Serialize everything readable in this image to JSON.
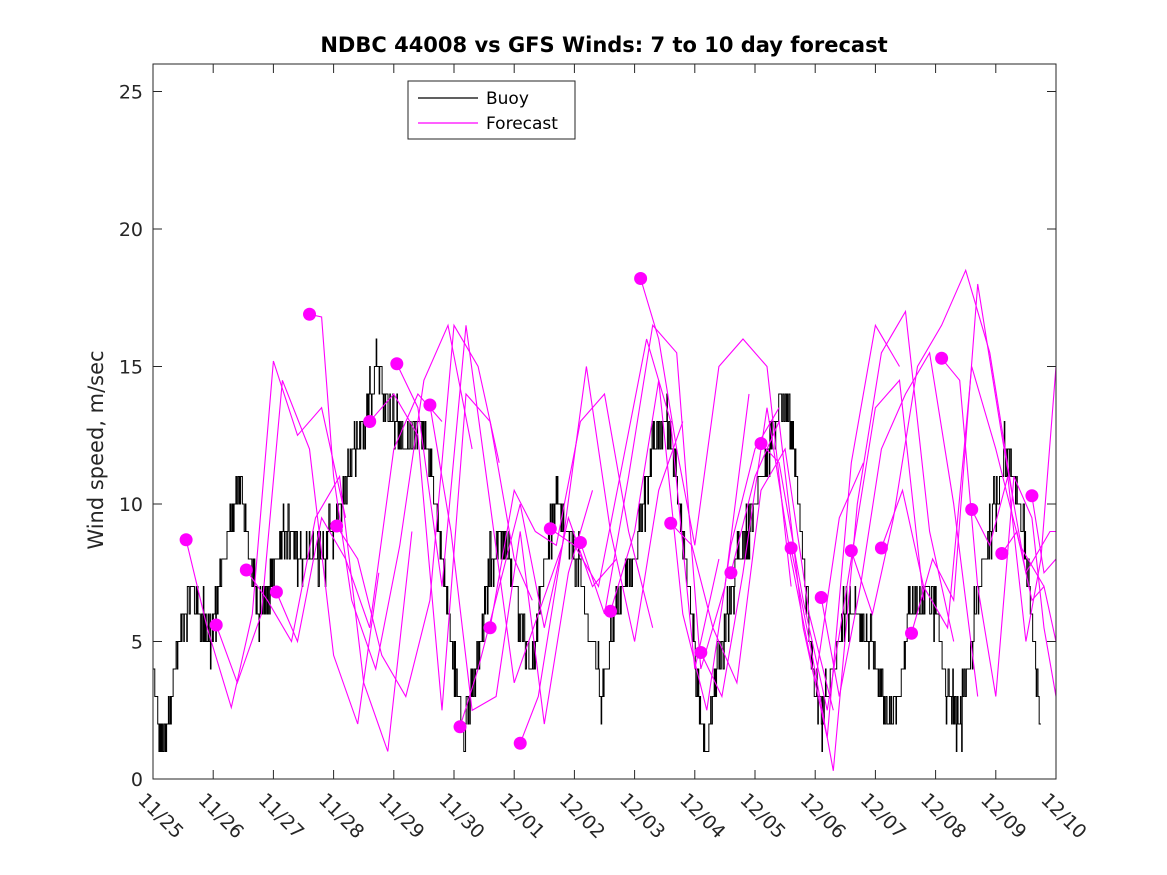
{
  "chart_data": {
    "type": "line",
    "title": "NDBC 44008 vs GFS Winds: 7 to 10 day forecast",
    "xlabel": "",
    "ylabel": "Wind speed, m/sec",
    "xlim": [
      0,
      15
    ],
    "ylim": [
      0,
      26
    ],
    "x_tick_labels": [
      "11/25",
      "11/26",
      "11/27",
      "11/28",
      "11/29",
      "11/30",
      "12/01",
      "12/02",
      "12/03",
      "12/04",
      "12/05",
      "12/06",
      "12/07",
      "12/08",
      "12/09",
      "12/10"
    ],
    "y_ticks": [
      0,
      5,
      10,
      15,
      20,
      25
    ],
    "legend": {
      "placement": "top-left",
      "entries": [
        "Buoy",
        "Forecast"
      ]
    },
    "colors": {
      "buoy": "#000000",
      "forecast": "#ff00ff"
    },
    "buoy_anchors": {
      "x": [
        0,
        0.1,
        0.2,
        0.35,
        0.5,
        0.65,
        0.8,
        0.95,
        1.1,
        1.25,
        1.45,
        1.6,
        1.75,
        1.9,
        2.05,
        2.2,
        2.5,
        2.75,
        3.0,
        3.25,
        3.5,
        3.7,
        3.85,
        4.0,
        4.2,
        4.35,
        4.55,
        4.7,
        4.85,
        5.0,
        5.15,
        5.3,
        5.45,
        5.6,
        5.75,
        5.9,
        6.1,
        6.3,
        6.5,
        6.7,
        6.85,
        7.05,
        7.2,
        7.45,
        7.6,
        7.8,
        8.0,
        8.15,
        8.3,
        8.5,
        8.65,
        8.8,
        8.95,
        9.05,
        9.2,
        9.35,
        9.55,
        9.7,
        9.9,
        10.1,
        10.3,
        10.5,
        10.65,
        10.8,
        10.95,
        11.1,
        11.3,
        11.5,
        11.7,
        11.9,
        12.05,
        12.2,
        12.4,
        12.55,
        12.7,
        12.85,
        13.0,
        13.2,
        13.4,
        13.6,
        13.8,
        14.0,
        14.15,
        14.3,
        14.45,
        14.55,
        14.65,
        14.75
      ],
      "y": [
        4,
        2,
        1,
        4,
        6,
        7,
        6,
        5,
        7,
        9,
        11,
        8,
        6,
        7,
        8,
        9,
        8,
        8,
        9,
        11,
        13,
        15,
        14,
        13,
        12,
        13,
        12,
        10,
        7,
        4,
        2,
        3,
        5,
        8,
        9,
        8,
        6,
        4,
        8,
        10,
        9,
        8,
        6,
        3,
        5,
        7,
        8,
        10,
        12,
        13,
        12,
        9,
        6,
        3,
        1,
        4,
        6,
        8,
        9,
        11,
        13,
        14,
        12,
        8,
        4,
        2,
        4,
        6,
        6,
        5,
        3,
        2,
        3,
        6,
        6,
        7,
        6,
        3,
        2,
        5,
        8,
        10,
        12,
        11,
        9,
        7,
        4,
        2
      ],
      "noise_amplitude": 1,
      "points": 1500
    },
    "forecast_series": [
      {
        "name": "Forecast 1",
        "x": [
          0.55,
          0.9,
          1.3,
          1.65,
          2.0,
          2.4,
          2.8,
          3.2
        ],
        "y": [
          8.7,
          5.5,
          2.6,
          6.0,
          15.2,
          12.5,
          13.5,
          9.5
        ]
      },
      {
        "name": "Forecast 2",
        "x": [
          1.05,
          1.4,
          1.8,
          2.15,
          2.6,
          3.0,
          3.4,
          3.75
        ],
        "y": [
          5.6,
          3.5,
          6.0,
          14.5,
          12.0,
          4.5,
          2.0,
          7.5
        ]
      },
      {
        "name": "Forecast 3",
        "x": [
          1.55,
          1.9,
          2.3,
          2.7,
          3.1,
          3.5,
          3.9,
          4.3
        ],
        "y": [
          7.6,
          6.5,
          5.0,
          9.5,
          11.0,
          3.5,
          1.0,
          9.0
        ]
      },
      {
        "name": "Forecast 4",
        "x": [
          2.05,
          2.4,
          2.8,
          3.2,
          3.6,
          4.0,
          4.4,
          4.8
        ],
        "y": [
          6.8,
          5.0,
          9.5,
          8.0,
          5.5,
          12.0,
          14.0,
          13.0
        ]
      },
      {
        "name": "Forecast 5",
        "x": [
          2.6,
          2.8,
          3.0,
          3.3,
          3.7,
          4.1,
          4.5,
          4.9,
          5.3
        ],
        "y": [
          16.9,
          16.8,
          11.0,
          6.5,
          4.0,
          8.5,
          14.5,
          16.5,
          12.0
        ]
      },
      {
        "name": "Forecast 6",
        "x": [
          3.05,
          3.4,
          3.8,
          4.2,
          4.6,
          5.0,
          5.4,
          5.75
        ],
        "y": [
          9.2,
          8.0,
          4.5,
          3.0,
          6.5,
          16.5,
          15.0,
          11.5
        ]
      },
      {
        "name": "Forecast 7",
        "x": [
          3.6,
          4.0,
          4.4,
          4.8,
          5.2,
          5.6,
          6.0,
          6.3
        ],
        "y": [
          13.0,
          14.0,
          12.5,
          2.5,
          14.0,
          13.0,
          8.0,
          6.5
        ]
      },
      {
        "name": "Forecast 8",
        "x": [
          4.05,
          4.4,
          4.8,
          5.2,
          5.6,
          6.0,
          6.4,
          6.8
        ],
        "y": [
          15.1,
          13.5,
          7.0,
          16.5,
          10.0,
          3.5,
          6.0,
          8.5
        ]
      },
      {
        "name": "Forecast 9",
        "x": [
          4.6,
          4.95,
          5.3,
          5.7,
          6.1,
          6.5,
          6.9,
          7.3
        ],
        "y": [
          13.6,
          9.0,
          2.5,
          3.0,
          9.0,
          2.0,
          7.5,
          10.5
        ]
      },
      {
        "name": "Forecast 10",
        "x": [
          5.1,
          5.4,
          5.75,
          6.1,
          6.5,
          6.9,
          7.3,
          7.7
        ],
        "y": [
          1.9,
          4.0,
          7.0,
          10.0,
          5.5,
          9.5,
          7.0,
          8.0
        ]
      },
      {
        "name": "Forecast 11",
        "x": [
          5.6,
          6.0,
          6.35,
          6.7,
          7.1,
          7.5,
          7.9,
          8.3
        ],
        "y": [
          5.5,
          10.5,
          9.0,
          8.5,
          13.0,
          14.0,
          9.0,
          5.5
        ]
      },
      {
        "name": "Forecast 12",
        "x": [
          6.1,
          6.4,
          6.8,
          7.2,
          7.6,
          8.0,
          8.4,
          8.8
        ],
        "y": [
          1.3,
          3.0,
          8.5,
          15.0,
          9.0,
          5.0,
          10.5,
          13.0
        ]
      },
      {
        "name": "Forecast 13",
        "x": [
          6.6,
          7.0,
          7.4,
          7.8,
          8.2,
          8.6,
          9.0,
          9.4
        ],
        "y": [
          9.1,
          8.5,
          7.0,
          11.5,
          16.0,
          13.0,
          4.0,
          8.0
        ]
      },
      {
        "name": "Forecast 14",
        "x": [
          7.1,
          7.5,
          7.9,
          8.3,
          8.7,
          9.1,
          9.5,
          9.9
        ],
        "y": [
          8.6,
          6.0,
          11.0,
          16.5,
          15.5,
          4.0,
          7.0,
          14.0
        ]
      },
      {
        "name": "Forecast 15",
        "x": [
          7.6,
          8.0,
          8.4,
          8.8,
          9.2,
          9.6,
          10.0,
          10.4
        ],
        "y": [
          6.1,
          9.0,
          14.5,
          6.0,
          2.5,
          8.5,
          12.0,
          13.5
        ]
      },
      {
        "name": "Forecast 16",
        "x": [
          8.1,
          8.4,
          8.7,
          9.0,
          9.4,
          9.8,
          10.2,
          10.6
        ],
        "y": [
          18.2,
          16.0,
          12.0,
          8.5,
          15.0,
          16.0,
          15.0,
          7.0
        ]
      },
      {
        "name": "Forecast 17",
        "x": [
          8.6,
          8.95,
          9.3,
          9.7,
          10.1,
          10.5,
          10.9,
          11.3
        ],
        "y": [
          9.3,
          8.5,
          5.5,
          3.5,
          10.5,
          12.0,
          6.0,
          2.5
        ]
      },
      {
        "name": "Forecast 18",
        "x": [
          9.1,
          9.45,
          9.8,
          10.2,
          10.6,
          11.0,
          11.4,
          11.8
        ],
        "y": [
          4.6,
          3.0,
          7.5,
          13.5,
          8.0,
          3.5,
          9.5,
          11.5
        ]
      },
      {
        "name": "Forecast 19",
        "x": [
          9.6,
          10.0,
          10.4,
          10.8,
          11.2,
          11.6,
          12.0,
          12.4
        ],
        "y": [
          7.5,
          11.0,
          13.0,
          5.5,
          1.5,
          11.5,
          16.5,
          15.0
        ]
      },
      {
        "name": "Forecast 20",
        "x": [
          10.1,
          10.4,
          10.8,
          11.2,
          11.6,
          12.0,
          12.4,
          12.8
        ],
        "y": [
          12.2,
          11.5,
          6.5,
          2.5,
          8.0,
          13.5,
          14.5,
          6.5
        ]
      },
      {
        "name": "Forecast 21",
        "x": [
          10.6,
          10.95,
          11.3,
          11.7,
          12.1,
          12.5,
          12.9,
          13.3
        ],
        "y": [
          8.4,
          4.5,
          0.3,
          10.0,
          15.5,
          17.0,
          9.0,
          5.0
        ]
      },
      {
        "name": "Forecast 22",
        "x": [
          11.1,
          11.4,
          11.75,
          12.1,
          12.5,
          12.9,
          13.3,
          13.7
        ],
        "y": [
          6.6,
          3.0,
          7.0,
          12.0,
          14.0,
          15.5,
          10.0,
          3.0
        ]
      },
      {
        "name": "Forecast 23",
        "x": [
          11.6,
          11.95,
          12.3,
          12.7,
          13.1,
          13.5,
          13.9,
          14.3
        ],
        "y": [
          8.3,
          6.0,
          9.5,
          15.0,
          16.5,
          18.5,
          15.5,
          10.0
        ]
      },
      {
        "name": "Forecast 24",
        "x": [
          12.1,
          12.45,
          12.8,
          13.2,
          13.6,
          14.0,
          14.4,
          14.8
        ],
        "y": [
          8.4,
          10.5,
          7.0,
          5.5,
          15.0,
          12.0,
          8.5,
          7.0
        ]
      },
      {
        "name": "Forecast 25",
        "x": [
          12.6,
          12.95,
          13.3,
          13.7,
          14.1,
          14.5,
          14.9,
          15.0
        ],
        "y": [
          5.3,
          8.0,
          6.5,
          18.0,
          12.5,
          7.5,
          9.0,
          9.0
        ]
      },
      {
        "name": "Forecast 26",
        "x": [
          13.1,
          13.4,
          13.7,
          14.0,
          14.3,
          14.6,
          14.8,
          15.0
        ],
        "y": [
          15.3,
          14.5,
          7.0,
          3.0,
          11.0,
          9.5,
          5.5,
          3.0
        ]
      },
      {
        "name": "Forecast 27",
        "x": [
          13.6,
          13.9,
          14.2,
          14.5,
          14.75,
          15.0
        ],
        "y": [
          9.8,
          8.5,
          11.0,
          5.0,
          8.0,
          15.0
        ]
      },
      {
        "name": "Forecast 28",
        "x": [
          14.1,
          14.35,
          14.6,
          14.8,
          15.0
        ],
        "y": [
          8.2,
          9.0,
          6.5,
          7.0,
          5.0
        ]
      },
      {
        "name": "Forecast 29",
        "x": [
          14.6,
          14.8,
          15.0
        ],
        "y": [
          10.3,
          7.5,
          8.0
        ]
      }
    ]
  }
}
